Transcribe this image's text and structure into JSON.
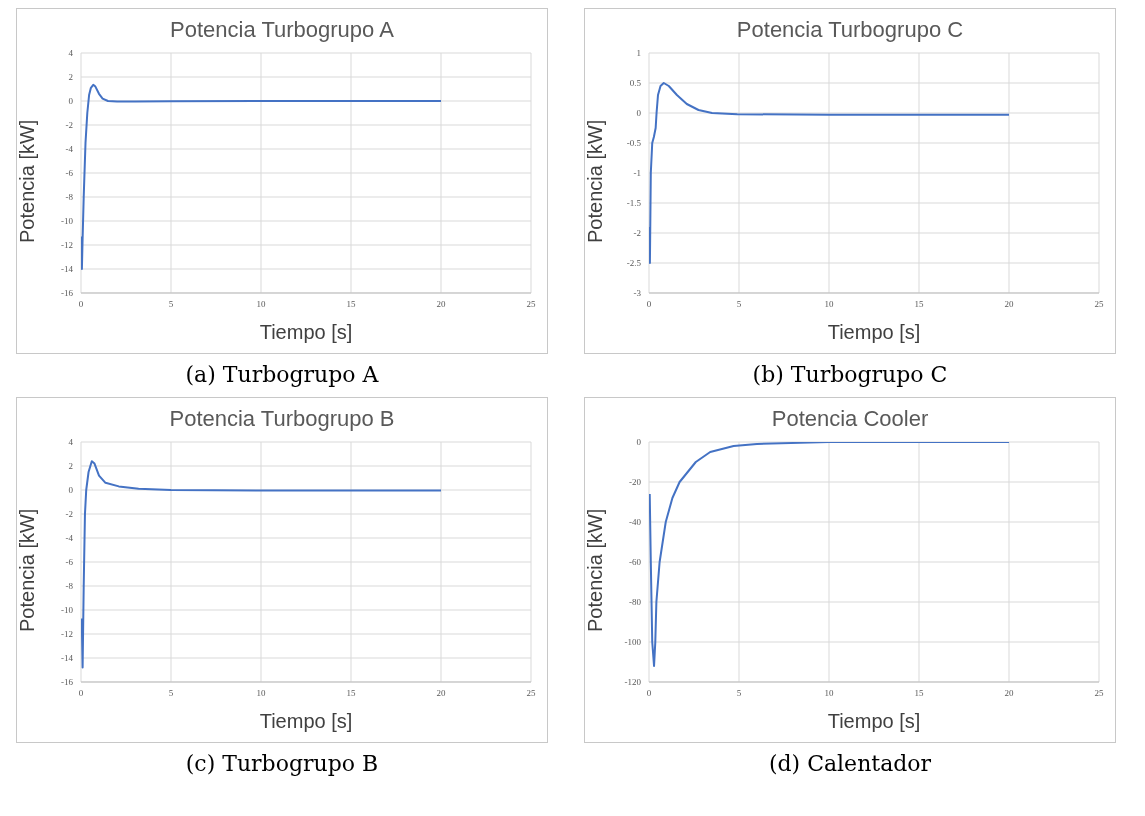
{
  "chart_data": [
    {
      "type": "line",
      "title": "Potencia Turbogrupo A",
      "xlabel": "Tiempo [s]",
      "ylabel": "Potencia [kW]",
      "annotations": [
        "(a) Turbogrupo A"
      ],
      "xlim": [
        0,
        25
      ],
      "xticks": [
        0,
        5,
        10,
        15,
        20,
        25
      ],
      "ylim": [
        -16,
        4
      ],
      "yticks": [
        -16,
        -14,
        -12,
        -10,
        -8,
        -6,
        -4,
        -2,
        0,
        2,
        4
      ],
      "grid": true,
      "legend": false,
      "marker": "none",
      "line_style": "solid",
      "series": [
        {
          "color": "#4472c4",
          "x": [
            0.03,
            0.05,
            0.08,
            0.15,
            0.25,
            0.35,
            0.45,
            0.55,
            0.68,
            0.8,
            1.0,
            1.2,
            1.5,
            2,
            3,
            5,
            10,
            20
          ],
          "values": [
            -11.3,
            -14,
            -12,
            -8,
            -3.5,
            -1,
            0.5,
            1.1,
            1.35,
            1.2,
            0.6,
            0.2,
            0,
            -0.05,
            -0.05,
            -0.02,
            0,
            0
          ]
        }
      ]
    },
    {
      "type": "line",
      "title": "Potencia Turbogrupo C",
      "xlabel": "Tiempo [s]",
      "ylabel": "Potencia [kW]",
      "annotations": [
        "(b) Turbogrupo C"
      ],
      "xlim": [
        0,
        25
      ],
      "xticks": [
        0,
        5,
        10,
        15,
        20,
        25
      ],
      "ylim": [
        -3,
        1
      ],
      "yticks": [
        -3,
        -2.5,
        -2,
        -1.5,
        -1,
        -0.5,
        0,
        0.5,
        1
      ],
      "grid": true,
      "legend": false,
      "marker": "none",
      "line_style": "solid",
      "series": [
        {
          "color": "#4472c4",
          "x": [
            0.02,
            0.05,
            0.1,
            0.18,
            0.27,
            0.37,
            0.42,
            0.5,
            0.64,
            0.82,
            1.1,
            1.55,
            2.1,
            2.75,
            3.5,
            4.9,
            10,
            20
          ],
          "values": [
            -1.9,
            -2.5,
            -1,
            -0.5,
            -0.4,
            -0.25,
            0,
            0.3,
            0.45,
            0.5,
            0.45,
            0.3,
            0.15,
            0.05,
            0,
            -0.02,
            -0.03,
            -0.03
          ]
        }
      ]
    },
    {
      "type": "line",
      "title": "Potencia Turbogrupo B",
      "xlabel": "Tiempo [s]",
      "ylabel": "Potencia [kW]",
      "annotations": [
        "(c) Turbogrupo B"
      ],
      "xlim": [
        0,
        25
      ],
      "xticks": [
        0,
        5,
        10,
        15,
        20,
        25
      ],
      "ylim": [
        -16,
        4
      ],
      "yticks": [
        -16,
        -14,
        -12,
        -10,
        -8,
        -6,
        -4,
        -2,
        0,
        2,
        4
      ],
      "grid": true,
      "legend": false,
      "marker": "none",
      "line_style": "solid",
      "series": [
        {
          "color": "#4472c4",
          "x": [
            0.04,
            0.09,
            0.15,
            0.22,
            0.29,
            0.42,
            0.6,
            0.75,
            1.0,
            1.36,
            2.1,
            3.2,
            5,
            10,
            20
          ],
          "values": [
            -10.7,
            -14.8,
            -8,
            -2,
            0,
            1.5,
            2.4,
            2.2,
            1.2,
            0.6,
            0.3,
            0.1,
            0,
            -0.05,
            -0.05
          ]
        }
      ]
    },
    {
      "type": "line",
      "title": "Potencia Cooler",
      "xlabel": "Tiempo [s]",
      "ylabel": "Potencia [kW]",
      "annotations": [
        "(d) Calentador"
      ],
      "xlim": [
        0,
        25
      ],
      "xticks": [
        0,
        5,
        10,
        15,
        20,
        25
      ],
      "ylim": [
        -120,
        0
      ],
      "yticks": [
        -120,
        -100,
        -80,
        -60,
        -40,
        -20,
        0
      ],
      "grid": true,
      "legend": false,
      "marker": "none",
      "line_style": "solid",
      "series": [
        {
          "color": "#4472c4",
          "x": [
            0.04,
            0.1,
            0.18,
            0.28,
            0.35,
            0.41,
            0.59,
            0.93,
            1.3,
            1.7,
            2.6,
            3.4,
            4.7,
            6,
            10,
            20
          ],
          "values": [
            -26,
            -60,
            -100,
            -112,
            -100,
            -80,
            -60,
            -40,
            -28,
            -20,
            -10,
            -5,
            -2,
            -1,
            0,
            0
          ]
        }
      ]
    }
  ]
}
